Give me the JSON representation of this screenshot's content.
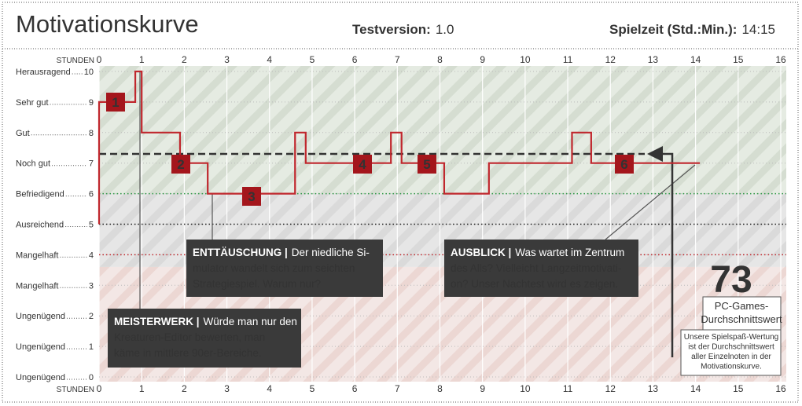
{
  "header": {
    "title": "Motivationskurve",
    "version_label": "Testversion:",
    "version": "1.0",
    "playtime_label": "Spielzeit (Std.:Min.):",
    "playtime": "14:15"
  },
  "chart_data": {
    "type": "line",
    "x_axis_label": "STUNDEN",
    "xlim": [
      0,
      16
    ],
    "xticks": [
      0,
      1,
      2,
      3,
      4,
      5,
      6,
      7,
      8,
      9,
      10,
      11,
      12,
      13,
      14,
      15,
      16
    ],
    "ylim": [
      0,
      10
    ],
    "yticks": [
      0,
      1,
      2,
      3,
      4,
      5,
      6,
      7,
      8,
      9,
      10
    ],
    "y_tick_names": [
      "Ungenügend",
      "Ungenügend",
      "Ungenügend",
      "Mangelhaft",
      "Mangelhaft",
      "Ausreichend",
      "Befriedigend",
      "Noch gut",
      "Gut",
      "Sehr gut",
      "Herausragend"
    ],
    "grid": true,
    "series": [
      {
        "color": "#c0272d",
        "x": [
          0,
          0,
          0.85,
          0.85,
          1,
          1,
          1.9,
          1.9,
          2.55,
          2.55,
          4.6,
          4.6,
          4.85,
          4.85,
          6.85,
          6.85,
          7.1,
          7.1,
          8.1,
          8.1,
          9.15,
          9.15,
          11.1,
          11.1,
          11.55,
          11.55,
          14.1
        ],
        "values": [
          5,
          9,
          9,
          10,
          10,
          8,
          8,
          7,
          7,
          6,
          6,
          8,
          8,
          7,
          7,
          8,
          8,
          7,
          7,
          6,
          6,
          7,
          7,
          8,
          8,
          7,
          7
        ]
      }
    ],
    "average": {
      "value": 7.3,
      "color": "#333333"
    },
    "reference_lines": [
      {
        "value": 6,
        "color": "#2e9a45"
      },
      {
        "value": 5,
        "color": "#222222"
      },
      {
        "value": 4,
        "color": "#c0272d"
      }
    ],
    "markers": [
      "1",
      "2",
      "3",
      "4",
      "5",
      "6"
    ]
  },
  "callouts": [
    {
      "heading": "ENTTÄUSCHUNG |",
      "lines": [
        "Der niedliche Si-",
        "mulator wandelt sich zum seichten",
        "Strategiespiel. Warum nur?"
      ]
    },
    {
      "heading": "MEISTERWERK |",
      "lines": [
        "Würde man nur den",
        "Kreaturen-Editor bewerten, man",
        "käme in mittlere 90er-Bereiche."
      ]
    },
    {
      "heading": "AUSBLICK |",
      "lines": [
        "Was wartet im Zentrum",
        "des Alls? Vielleicht Langzeitmotivati-",
        "on? Unser Nachtest wird es zeigen."
      ]
    }
  ],
  "score": {
    "value": 73,
    "label_lines": [
      "PC-Games-",
      "Durchschnittswert"
    ],
    "note_lines": [
      "Unsere Spielspaß-Wertung",
      "ist der Durchschnittswert",
      "aller Einzelnoten in der",
      "Motivationskurve."
    ]
  }
}
